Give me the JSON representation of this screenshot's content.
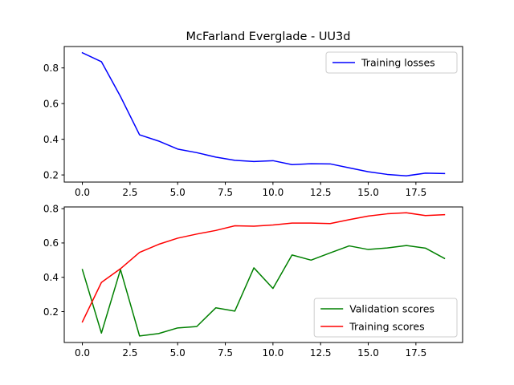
{
  "title": "McFarland Everglade - UU3d",
  "chart_data": [
    {
      "type": "line",
      "x": [
        0,
        1,
        2,
        3,
        4,
        5,
        6,
        7,
        8,
        9,
        10,
        11,
        12,
        13,
        14,
        15,
        16,
        17,
        18,
        19
      ],
      "series": [
        {
          "name": "Training losses",
          "color": "#0000ff",
          "values": [
            0.885,
            0.835,
            0.64,
            0.425,
            0.39,
            0.345,
            0.325,
            0.3,
            0.282,
            0.275,
            0.28,
            0.258,
            0.263,
            0.262,
            0.24,
            0.218,
            0.203,
            0.195,
            0.21,
            0.208
          ]
        }
      ],
      "xlim": [
        -0.95,
        19.95
      ],
      "ylim": [
        0.16,
        0.92
      ],
      "xticks": [
        0.0,
        2.5,
        5.0,
        7.5,
        10.0,
        12.5,
        15.0,
        17.5
      ],
      "xtick_labels": [
        "0.0",
        "2.5",
        "5.0",
        "7.5",
        "10.0",
        "12.5",
        "15.0",
        "17.5"
      ],
      "yticks": [
        0.2,
        0.4,
        0.6,
        0.8
      ],
      "ytick_labels": [
        "0.2",
        "0.4",
        "0.6",
        "0.8"
      ],
      "legend": "top-right",
      "grid": false
    },
    {
      "type": "line",
      "x": [
        0,
        1,
        2,
        3,
        4,
        5,
        6,
        7,
        8,
        9,
        10,
        11,
        12,
        13,
        14,
        15,
        16,
        17,
        18,
        19
      ],
      "series": [
        {
          "name": "Validation scores",
          "color": "#008000",
          "values": [
            0.445,
            0.075,
            0.445,
            0.058,
            0.072,
            0.105,
            0.113,
            0.222,
            0.203,
            0.455,
            0.335,
            0.53,
            0.5,
            0.542,
            0.583,
            0.562,
            0.571,
            0.585,
            0.57,
            0.51
          ]
        },
        {
          "name": "Training scores",
          "color": "#ff0000",
          "values": [
            0.14,
            0.37,
            0.45,
            0.545,
            0.592,
            0.628,
            0.652,
            0.673,
            0.7,
            0.698,
            0.705,
            0.716,
            0.716,
            0.713,
            0.736,
            0.757,
            0.77,
            0.776,
            0.76,
            0.765
          ]
        }
      ],
      "xlim": [
        -0.95,
        19.95
      ],
      "ylim": [
        0.02,
        0.81
      ],
      "xticks": [
        0.0,
        2.5,
        5.0,
        7.5,
        10.0,
        12.5,
        15.0,
        17.5
      ],
      "xtick_labels": [
        "0.0",
        "2.5",
        "5.0",
        "7.5",
        "10.0",
        "12.5",
        "15.0",
        "17.5"
      ],
      "yticks": [
        0.2,
        0.4,
        0.6,
        0.8
      ],
      "ytick_labels": [
        "0.2",
        "0.4",
        "0.6",
        "0.8"
      ],
      "legend": "bottom-right",
      "grid": false
    }
  ]
}
